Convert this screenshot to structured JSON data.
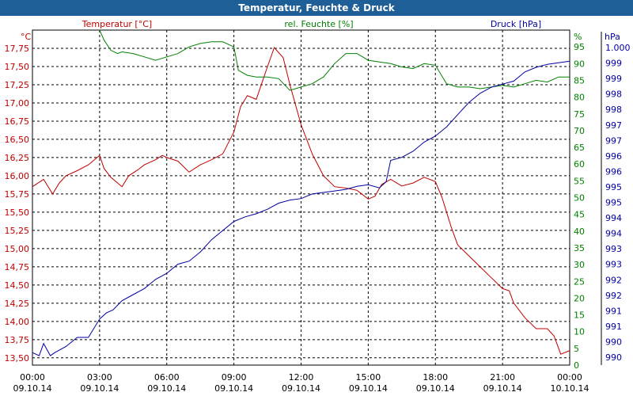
{
  "window": {
    "title": "Temperatur, Feuchte & Druck"
  },
  "chart_data": {
    "type": "line",
    "title": "Temperatur, Feuchte & Druck",
    "grid": true,
    "x_ticks": [
      {
        "time": "00:00",
        "date": "09.10.14"
      },
      {
        "time": "03:00",
        "date": "09.10.14"
      },
      {
        "time": "06:00",
        "date": "09.10.14"
      },
      {
        "time": "09:00",
        "date": "09.10.14"
      },
      {
        "time": "12:00",
        "date": "09.10.14"
      },
      {
        "time": "15:00",
        "date": "09.10.14"
      },
      {
        "time": "18:00",
        "date": "09.10.14"
      },
      {
        "time": "21:00",
        "date": "09.10.14"
      },
      {
        "time": "00:00",
        "date": "10.10.14"
      }
    ],
    "x_range_hours": [
      0,
      24
    ],
    "axes": {
      "temperature": {
        "header": "Temperatur [°C]",
        "unit": "°C",
        "color": "#c00000",
        "side": "left",
        "range": [
          13.4,
          18.0
        ],
        "ticks": [
          "13,50",
          "13,75",
          "14,00",
          "14,25",
          "14,50",
          "14,75",
          "15,00",
          "15,25",
          "15,50",
          "15,75",
          "16,00",
          "16,25",
          "16,50",
          "16,75",
          "17,00",
          "17,25",
          "17,50",
          "17,75"
        ]
      },
      "humidity": {
        "header": "rel. Feuchte [%]",
        "unit": "%",
        "color": "#008000",
        "side": "right-inner",
        "range": [
          0,
          100
        ],
        "ticks": [
          "0",
          "5",
          "10",
          "15",
          "20",
          "25",
          "30",
          "35",
          "40",
          "45",
          "50",
          "55",
          "60",
          "65",
          "70",
          "75",
          "80",
          "85",
          "90",
          "95"
        ]
      },
      "pressure": {
        "header": "Druck [hPa]",
        "unit": "hPa",
        "color": "#0000a0",
        "side": "right-outer",
        "ticks": [
          "990",
          "990",
          "991",
          "991",
          "992",
          "992",
          "993",
          "993",
          "994",
          "994",
          "995",
          "995",
          "996",
          "996",
          "997",
          "997",
          "998",
          "998",
          "999",
          "999",
          "1.000"
        ]
      }
    },
    "series": [
      {
        "name": "Temperatur [°C]",
        "axis": "temperature",
        "color": "#c00000",
        "x": [
          0,
          0.5,
          0.9,
          1.2,
          1.5,
          2.0,
          2.5,
          3.0,
          3.2,
          3.5,
          4.0,
          4.3,
          4.7,
          5.0,
          5.5,
          5.8,
          6.0,
          6.5,
          7.0,
          7.5,
          8.0,
          8.5,
          9.0,
          9.3,
          9.6,
          10.0,
          10.5,
          10.8,
          11.2,
          11.5,
          12.0,
          12.5,
          13.0,
          13.5,
          14.0,
          14.5,
          15.0,
          15.3,
          15.6,
          16.0,
          16.5,
          17.0,
          17.5,
          18.0,
          18.3,
          18.7,
          19.0,
          19.5,
          20.0,
          20.5,
          21.0,
          21.3,
          21.5,
          22.0,
          22.5,
          23.0,
          23.3,
          23.6,
          24.0
        ],
        "y": [
          15.85,
          15.95,
          15.75,
          15.9,
          16.0,
          16.07,
          16.15,
          16.28,
          16.1,
          15.98,
          15.85,
          16.0,
          16.08,
          16.15,
          16.22,
          16.28,
          16.25,
          16.2,
          16.05,
          16.15,
          16.22,
          16.3,
          16.6,
          16.95,
          17.1,
          17.05,
          17.5,
          17.76,
          17.62,
          17.25,
          16.7,
          16.3,
          16.0,
          15.85,
          15.83,
          15.8,
          15.68,
          15.72,
          15.88,
          15.95,
          15.86,
          15.9,
          15.98,
          15.92,
          15.7,
          15.3,
          15.05,
          14.9,
          14.75,
          14.6,
          14.45,
          14.42,
          14.25,
          14.05,
          13.9,
          13.9,
          13.8,
          13.55,
          13.6
        ]
      },
      {
        "name": "rel. Feuchte [%]",
        "axis": "humidity",
        "color": "#008000",
        "x": [
          3.0,
          3.2,
          3.5,
          3.8,
          4.0,
          4.5,
          5.0,
          5.5,
          6.0,
          6.5,
          7.0,
          7.5,
          8.0,
          8.5,
          9.0,
          9.2,
          9.6,
          10.0,
          10.5,
          11.0,
          11.5,
          12.0,
          12.5,
          13.0,
          13.5,
          14.0,
          14.5,
          15.0,
          15.5,
          16.0,
          16.5,
          17.0,
          17.5,
          18.0,
          18.5,
          19.0,
          19.5,
          20.0,
          20.5,
          21.0,
          21.5,
          22.0,
          22.5,
          23.0,
          23.5,
          24.0
        ],
        "y": [
          100,
          97,
          94,
          93,
          93.5,
          93,
          92,
          91,
          92,
          93,
          95,
          96,
          96.5,
          96.5,
          95,
          88,
          86.5,
          86,
          86,
          85.5,
          82,
          83,
          84,
          86,
          90,
          93,
          93,
          91,
          90.5,
          90,
          89,
          88.5,
          90,
          89.5,
          84,
          83,
          83,
          82.5,
          83,
          83.5,
          83,
          84,
          85,
          84.5,
          86,
          86
        ]
      },
      {
        "name": "Druck [hPa]",
        "axis": "pressure",
        "color": "#0000a0",
        "x": [
          0,
          0.3,
          0.5,
          0.8,
          1.0,
          1.5,
          2.0,
          2.5,
          3.0,
          3.3,
          3.6,
          4.0,
          4.5,
          5.0,
          5.5,
          6.0,
          6.5,
          7.0,
          7.5,
          8.0,
          8.5,
          9.0,
          9.5,
          10.0,
          10.5,
          11.0,
          11.5,
          12.0,
          12.5,
          13.0,
          13.5,
          14.0,
          14.5,
          15.0,
          15.5,
          15.8,
          16.0,
          16.5,
          17.0,
          17.5,
          18.0,
          18.5,
          19.0,
          19.5,
          20.0,
          20.5,
          21.0,
          21.5,
          22.0,
          22.5,
          23.0,
          23.5,
          24.0
        ],
        "y": [
          990.1,
          990.0,
          990.4,
          990.0,
          990.1,
          990.3,
          990.6,
          990.6,
          991.2,
          991.4,
          991.5,
          991.8,
          992.0,
          992.2,
          992.5,
          992.7,
          993.0,
          993.1,
          993.4,
          993.8,
          994.1,
          994.4,
          994.55,
          994.65,
          994.8,
          995.0,
          995.1,
          995.15,
          995.3,
          995.35,
          995.4,
          995.45,
          995.55,
          995.6,
          995.5,
          995.7,
          996.4,
          996.5,
          996.7,
          997.0,
          997.2,
          997.5,
          997.9,
          998.3,
          998.6,
          998.8,
          998.9,
          999.0,
          999.3,
          999.45,
          999.55,
          999.6,
          999.65
        ]
      }
    ]
  }
}
